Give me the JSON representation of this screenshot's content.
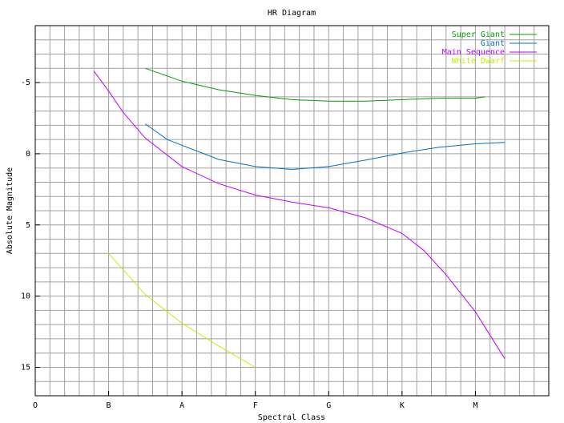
{
  "chart_data": {
    "type": "line",
    "title": "HR Diagram",
    "x_label": "Spectral Class",
    "y_label": "Absolute Magnitude",
    "xlim": [
      0,
      7
    ],
    "ylim": [
      17,
      -9
    ],
    "xticks": [
      {
        "value": 0,
        "label": "O"
      },
      {
        "value": 1,
        "label": "B"
      },
      {
        "value": 2,
        "label": "A"
      },
      {
        "value": 3,
        "label": "F"
      },
      {
        "value": 4,
        "label": "G"
      },
      {
        "value": 5,
        "label": "K"
      },
      {
        "value": 6,
        "label": "M"
      }
    ],
    "yticks": [
      -5,
      0,
      5,
      10,
      15
    ],
    "grid": true,
    "minor_grid_step": {
      "x": 0.2,
      "y": 1
    },
    "legend": "top-right",
    "series": [
      {
        "name": "Super Giant",
        "color": "#00a000",
        "x": [
          1.5,
          2,
          2.5,
          3,
          3.5,
          4,
          4.5,
          5,
          5.5,
          6,
          6.13
        ],
        "values": [
          -6,
          -5.1,
          -4.5,
          -4.1,
          -3.8,
          -3.7,
          -3.7,
          -3.8,
          -3.9,
          -3.9,
          -4
        ]
      },
      {
        "name": "Giant",
        "color": "#0070c0",
        "x": [
          1.5,
          1.8,
          2,
          2.5,
          3,
          3.5,
          4,
          4.5,
          5,
          5.5,
          6,
          6.4
        ],
        "values": [
          -2.1,
          -1,
          -0.6,
          0.4,
          0.9,
          1.1,
          0.9,
          0.45,
          -0.05,
          -0.45,
          -0.7,
          -0.8
        ]
      },
      {
        "name": "Main Sequence",
        "color": "#c000ff",
        "x": [
          0.8,
          1,
          1.2,
          1.5,
          2,
          2.5,
          3,
          3.5,
          4,
          4.5,
          5,
          5.3,
          5.6,
          5.8,
          6,
          6.4
        ],
        "values": [
          -5.8,
          -4.4,
          -2.9,
          -1.1,
          0.9,
          2.1,
          2.9,
          3.4,
          3.8,
          4.5,
          5.6,
          6.8,
          8.5,
          9.8,
          11.1,
          14.4
        ]
      },
      {
        "name": "White Dwarf",
        "color": "#c0f000",
        "x": [
          1,
          1.5,
          2,
          2.5,
          3
        ],
        "values": [
          7,
          9.9,
          11.9,
          13.5,
          15
        ]
      }
    ]
  }
}
